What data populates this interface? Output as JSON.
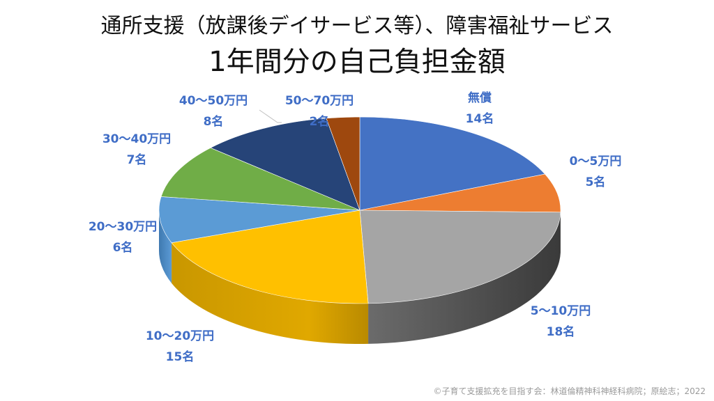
{
  "chart_data": {
    "type": "pie",
    "title": "通所支援（放課後デイサービス等）、障害福祉サービス",
    "subtitle": "1年間分の自己負担金額",
    "slices": [
      {
        "label": "無償",
        "count_label": "14名",
        "value": 14,
        "color": "#4472c4"
      },
      {
        "label": "0〜5万円",
        "count_label": "5名",
        "value": 5,
        "color": "#ed7d31"
      },
      {
        "label": "5〜10万円",
        "count_label": "18名",
        "value": 18,
        "color": "#a5a5a5"
      },
      {
        "label": "10〜20万円",
        "count_label": "15名",
        "value": 15,
        "color": "#ffc000"
      },
      {
        "label": "20〜30万円",
        "count_label": "6名",
        "value": 6,
        "color": "#5b9bd5"
      },
      {
        "label": "30〜40万円",
        "count_label": "7名",
        "value": 7,
        "color": "#70ad47"
      },
      {
        "label": "40〜50万円",
        "count_label": "8名",
        "value": 8,
        "color": "#264478"
      },
      {
        "label": "50〜70万円",
        "count_label": "2名",
        "value": 2,
        "color": "#9e480e"
      }
    ],
    "label_color": "#3f6dc6",
    "legend": "none"
  },
  "credit": "©子育て支援拡充を目指す会：林道倫精神科神経科病院；原絵志；2022"
}
